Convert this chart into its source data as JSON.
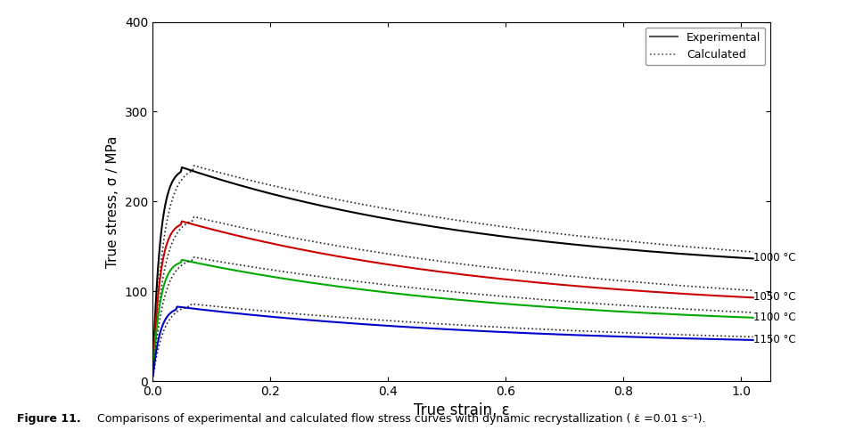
{
  "title": "",
  "xlabel": "True strain, ε",
  "ylabel": "True stress, σ / MPa",
  "xlim": [
    0,
    1.05
  ],
  "ylim": [
    0,
    400
  ],
  "xticks": [
    0.0,
    0.2,
    0.4,
    0.6,
    0.8,
    1.0
  ],
  "yticks": [
    0,
    100,
    200,
    300,
    400
  ],
  "figure_caption": "Figure 11. Comparisons of experimental and calculated flow stress curves with dynamic recrystallization ( ε̇ =0.01 s⁻¹).",
  "curves": [
    {
      "label": "1000 °C",
      "color": "#000000",
      "peak_strain": 0.05,
      "peak_stress": 238,
      "steady_stress": 115,
      "calc_peak_stress": 240,
      "calc_peak_strain": 0.07
    },
    {
      "label": "1050 °C",
      "color": "#cc0000",
      "peak_strain": 0.05,
      "peak_stress": 178,
      "steady_stress": 75,
      "calc_peak_stress": 183,
      "calc_peak_strain": 0.07
    },
    {
      "label": "1100 °C",
      "color": "#00aa00",
      "peak_strain": 0.05,
      "peak_stress": 135,
      "steady_stress": 57,
      "calc_peak_stress": 138,
      "calc_peak_strain": 0.07
    },
    {
      "label": "1150 °C",
      "color": "#0000cc",
      "peak_strain": 0.04,
      "peak_stress": 83,
      "steady_stress": 38,
      "calc_peak_stress": 86,
      "calc_peak_strain": 0.065
    }
  ],
  "legend_labels": [
    "Experimental",
    "Calculated"
  ],
  "legend_colors": [
    "#555555",
    "#555555"
  ],
  "background_color": "#ffffff"
}
